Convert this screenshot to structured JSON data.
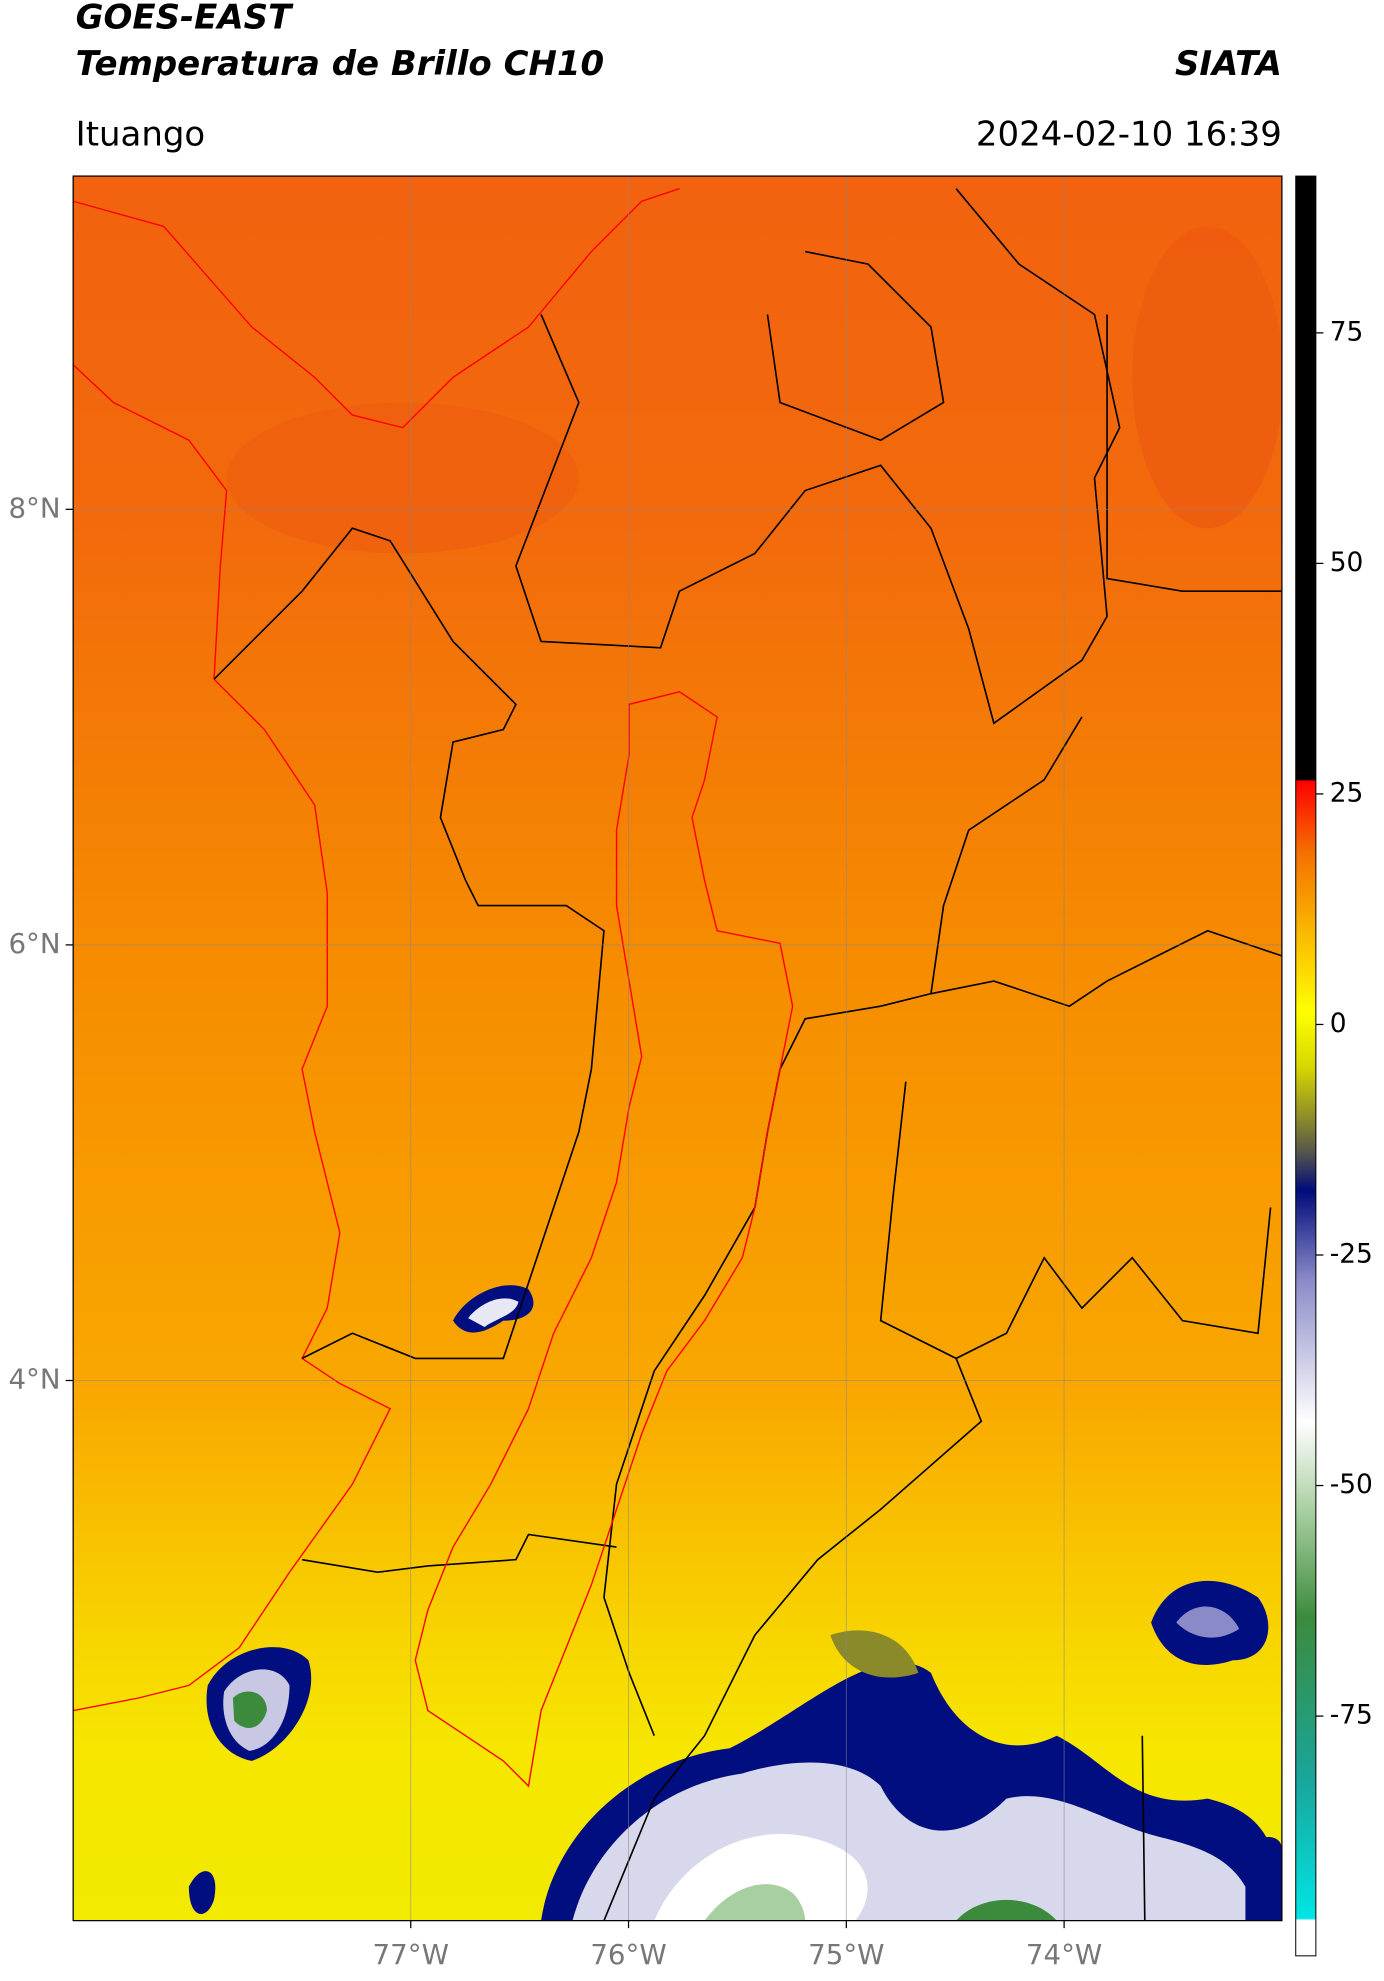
{
  "header": {
    "title": "GOES-EAST",
    "subtitle": "Temperatura de Brillo CH10",
    "source": "SIATA",
    "location": "Ituango",
    "timestamp": "2024-02-10 16:39"
  },
  "map": {
    "xlim": [
      -78.55,
      -73.0
    ],
    "ylim": [
      1.52,
      9.53
    ],
    "xticks": [
      {
        "value": -77,
        "label": "77°W"
      },
      {
        "value": -76,
        "label": "76°W"
      },
      {
        "value": -75,
        "label": "75°W"
      },
      {
        "value": -74,
        "label": "74°W"
      }
    ],
    "yticks": [
      {
        "value": 8,
        "label": "8°N"
      },
      {
        "value": 6,
        "label": "6°N"
      },
      {
        "value": 4,
        "label": "4°N"
      }
    ],
    "grid": true
  },
  "colorbar": {
    "lim": [
      -101,
      92
    ],
    "ticks": [
      75,
      50,
      25,
      0,
      -25,
      -50,
      -75
    ]
  }
}
